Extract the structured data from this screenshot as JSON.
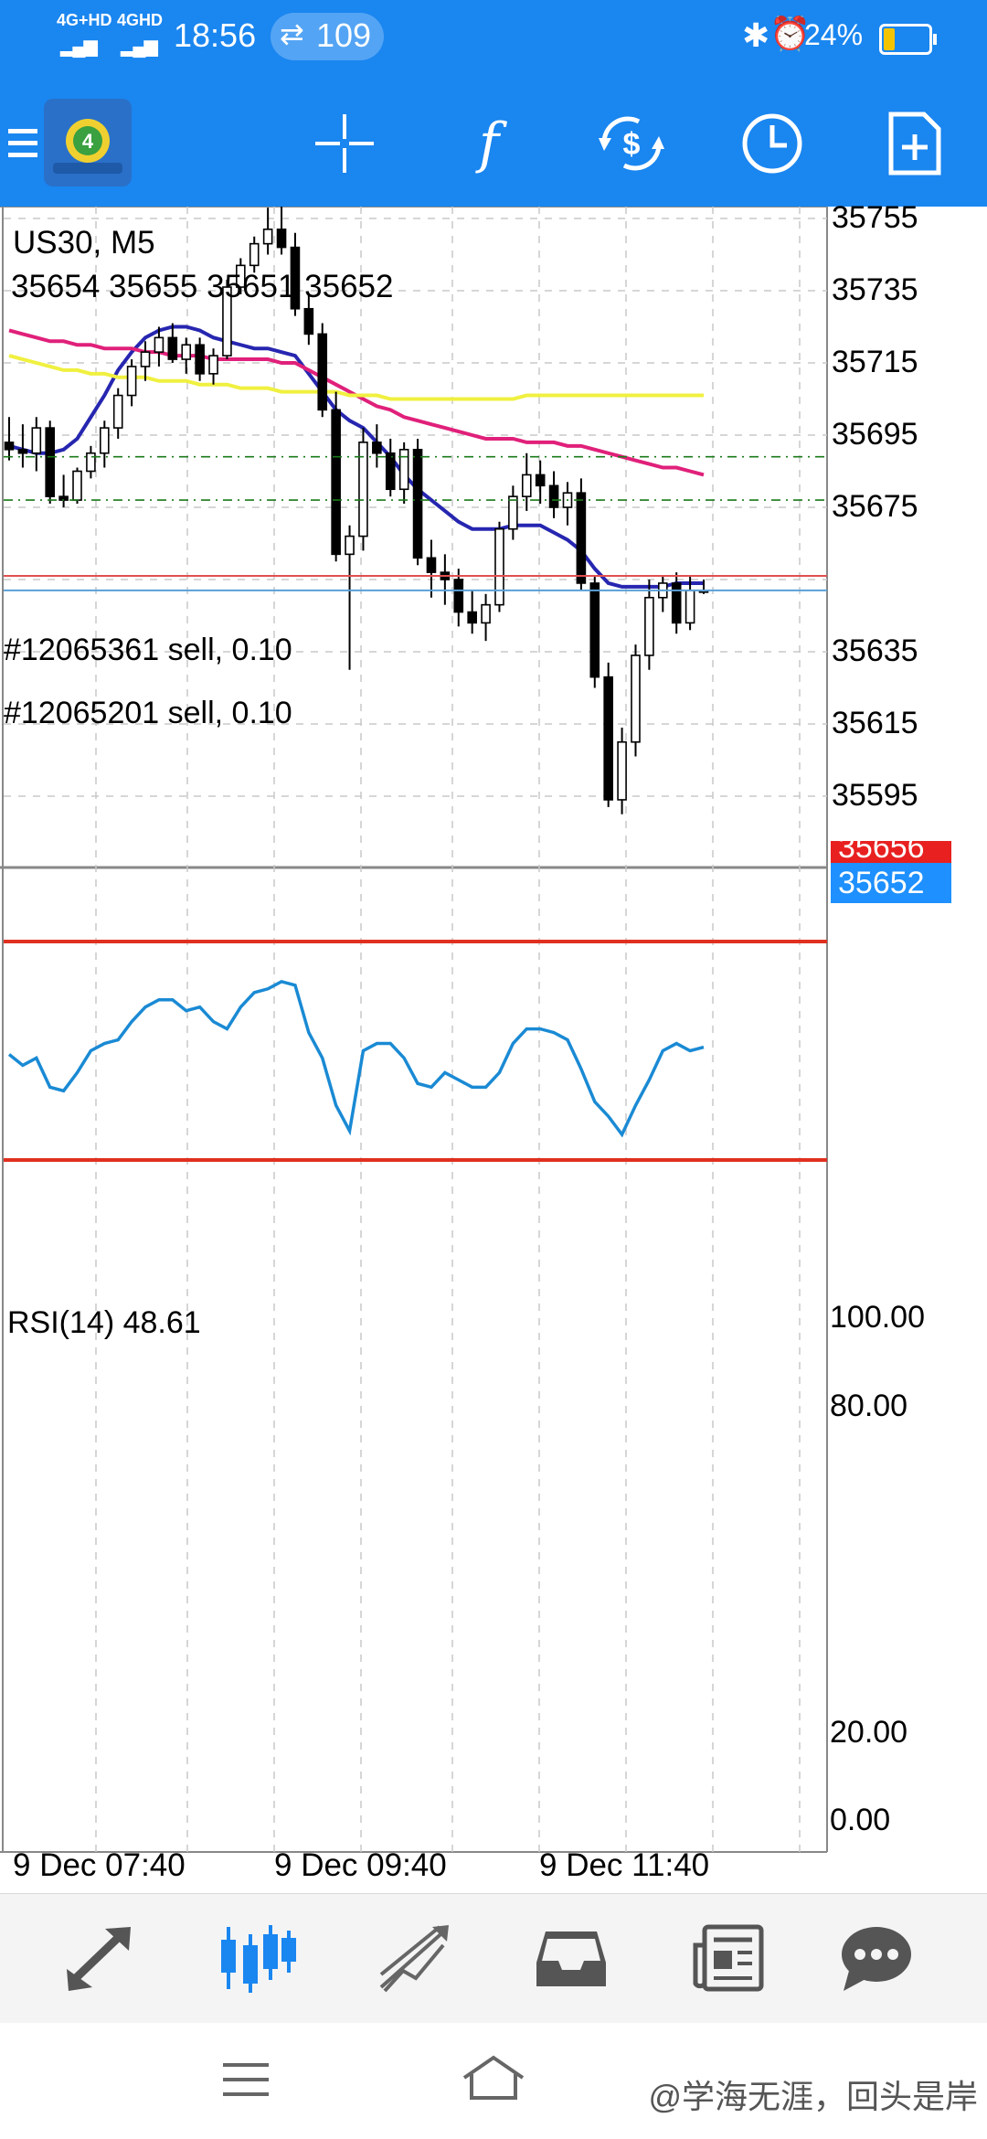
{
  "status_bar": {
    "network_1": "4G+HD",
    "network_2": "4GHD",
    "time": "18:56",
    "data_speed": "109",
    "battery_percent": "24%"
  },
  "toolbar": {
    "icons": [
      "menu-icon",
      "metatrader-logo-icon",
      "crosshair-icon",
      "indicators-icon",
      "trade-icon",
      "timeframe-icon",
      "new-order-icon"
    ]
  },
  "chart": {
    "symbol": "US30, M5",
    "ohlc": "35654 35655 35651 35652",
    "price_labels": [
      "35755",
      "35735",
      "35715",
      "35695",
      "35675",
      "35635",
      "35615",
      "35595"
    ],
    "bid_label": "35656",
    "ask_label": "35652",
    "order_lines": [
      "#12065361 sell, 0.10",
      "#12065201 sell, 0.10"
    ],
    "colors": {
      "up_candle": "#ffffff",
      "down_candle": "#000000",
      "ma_fast": "#2626b0",
      "ma_mid": "#e0207a",
      "ma_slow": "#f0f040",
      "bid_line": "#e05050",
      "ask_line": "#5aa0d8",
      "ask_badge": "#1e90ff",
      "bid_badge": "#e82020"
    }
  },
  "rsi": {
    "label": "RSI(14) 48.61",
    "levels": [
      "100.00",
      "80.00",
      "20.00",
      "0.00"
    ],
    "line_color": "#1a8ad4",
    "level_color": "#e03020"
  },
  "time_axis": [
    "9 Dec 07:40",
    "9 Dec 09:40",
    "9 Dec 11:40"
  ],
  "chart_data": {
    "type": "candlestick",
    "title": "US30, M5",
    "ylim": [
      35584,
      35774
    ],
    "candles": [
      [
        35693,
        35700,
        35688,
        35691
      ],
      [
        35691,
        35698,
        35686,
        35690
      ],
      [
        35690,
        35700,
        35685,
        35697
      ],
      [
        35697,
        35699,
        35676,
        35678
      ],
      [
        35678,
        35684,
        35675,
        35677
      ],
      [
        35677,
        35686,
        35676,
        35685
      ],
      [
        35685,
        35692,
        35683,
        35690
      ],
      [
        35690,
        35699,
        35686,
        35697
      ],
      [
        35697,
        35708,
        35694,
        35706
      ],
      [
        35706,
        35716,
        35703,
        35714
      ],
      [
        35714,
        35721,
        35710,
        35718
      ],
      [
        35718,
        35725,
        35714,
        35722
      ],
      [
        35722,
        35726,
        35715,
        35716
      ],
      [
        35716,
        35722,
        35712,
        35720
      ],
      [
        35720,
        35722,
        35710,
        35712
      ],
      [
        35712,
        35719,
        35709,
        35717
      ],
      [
        35717,
        35738,
        35716,
        35736
      ],
      [
        35736,
        35744,
        35734,
        35742
      ],
      [
        35742,
        35750,
        35740,
        35748
      ],
      [
        35748,
        35758,
        35745,
        35752
      ],
      [
        35752,
        35760,
        35745,
        35747
      ],
      [
        35747,
        35751,
        35728,
        35730
      ],
      [
        35730,
        35734,
        35720,
        35723
      ],
      [
        35723,
        35726,
        35700,
        35702
      ],
      [
        35702,
        35707,
        35660,
        35662
      ],
      [
        35662,
        35670,
        35630,
        35667
      ],
      [
        35667,
        35697,
        35663,
        35693
      ],
      [
        35693,
        35698,
        35686,
        35690
      ],
      [
        35690,
        35694,
        35678,
        35680
      ],
      [
        35680,
        35693,
        35676,
        35691
      ],
      [
        35691,
        35694,
        35659,
        35661
      ],
      [
        35661,
        35666,
        35650,
        35657
      ],
      [
        35657,
        35662,
        35648,
        35655
      ],
      [
        35655,
        35658,
        35642,
        35646
      ],
      [
        35646,
        35652,
        35640,
        35643
      ],
      [
        35643,
        35651,
        35638,
        35648
      ],
      [
        35648,
        35671,
        35646,
        35669
      ],
      [
        35669,
        35681,
        35666,
        35678
      ],
      [
        35678,
        35690,
        35674,
        35684
      ],
      [
        35684,
        35688,
        35676,
        35681
      ],
      [
        35681,
        35685,
        35672,
        35675
      ],
      [
        35675,
        35682,
        35670,
        35679
      ],
      [
        35679,
        35683,
        35652,
        35654
      ],
      [
        35654,
        35656,
        35625,
        35628
      ],
      [
        35628,
        35632,
        35592,
        35594
      ],
      [
        35594,
        35614,
        35590,
        35610
      ],
      [
        35610,
        35637,
        35606,
        35634
      ],
      [
        35634,
        35655,
        35630,
        35650
      ],
      [
        35650,
        35656,
        35646,
        35654
      ],
      [
        35654,
        35657,
        35640,
        35643
      ],
      [
        35643,
        35656,
        35641,
        35652
      ],
      [
        35652,
        35655,
        35651,
        35652
      ]
    ],
    "series": [
      {
        "values": [
          35692,
          35691,
          35690,
          35690,
          35691,
          35694,
          35700,
          35706,
          35713,
          35718,
          35722,
          35724,
          35725,
          35725,
          35724,
          35722,
          35721,
          35720,
          35719,
          35719,
          35718,
          35717,
          35712,
          35707,
          35702,
          35699,
          35697,
          35693,
          35689,
          35684,
          35680,
          35677,
          35674,
          35671,
          35669,
          35669,
          35669,
          35670,
          35670,
          35670,
          35668,
          35666,
          35663,
          35658,
          35654,
          35653,
          35653,
          35653,
          35653,
          35654,
          35654,
          35654
        ],
        "color": "#2626b0"
      },
      {
        "values": [
          35724,
          35723,
          35722,
          35721,
          35721,
          35720,
          35720,
          35719,
          35719,
          35719,
          35718,
          35718,
          35717,
          35717,
          35717,
          35716,
          35716,
          35716,
          35716,
          35716,
          35715,
          35715,
          35713,
          35711,
          35709,
          35707,
          35705,
          35703,
          35702,
          35700,
          35699,
          35698,
          35697,
          35696,
          35695,
          35694,
          35694,
          35694,
          35693,
          35693,
          35693,
          35692,
          35692,
          35691,
          35690,
          35689,
          35688,
          35687,
          35686,
          35686,
          35685,
          35684
        ],
        "color": "#e0207a"
      },
      {
        "values": [
          35717,
          35716,
          35715,
          35714,
          35713,
          35713,
          35712,
          35712,
          35711,
          35711,
          35711,
          35710,
          35710,
          35710,
          35709,
          35709,
          35709,
          35708,
          35708,
          35708,
          35707,
          35707,
          35707,
          35707,
          35707,
          35706,
          35706,
          35706,
          35705,
          35705,
          35705,
          35705,
          35705,
          35705,
          35705,
          35705,
          35705,
          35705,
          35706,
          35706,
          35706,
          35706,
          35706,
          35706,
          35706,
          35706,
          35706,
          35706,
          35706,
          35706,
          35706,
          35706
        ],
        "color": "#f0f040"
      }
    ],
    "rsi": [
      49,
      46,
      48,
      40,
      39,
      44,
      50,
      52,
      53,
      58,
      62,
      64,
      64,
      61,
      62,
      58,
      56,
      62,
      66,
      67,
      69,
      68,
      55,
      48,
      35,
      28,
      50,
      52,
      52,
      48,
      41,
      40,
      44,
      42,
      40,
      40,
      44,
      52,
      56,
      56,
      55,
      53,
      45,
      36,
      32,
      27,
      35,
      42,
      50,
      52,
      50,
      51
    ],
    "ask": 35652,
    "bid": 35656,
    "orders": [
      35689,
      35677
    ]
  },
  "bottom_nav": {
    "icons": [
      "quotes-icon",
      "chart-icon",
      "trade-icon",
      "history-icon",
      "news-icon",
      "messages-icon"
    ]
  },
  "system_nav": {
    "watermark": "@学海无涯，回头是岸"
  }
}
